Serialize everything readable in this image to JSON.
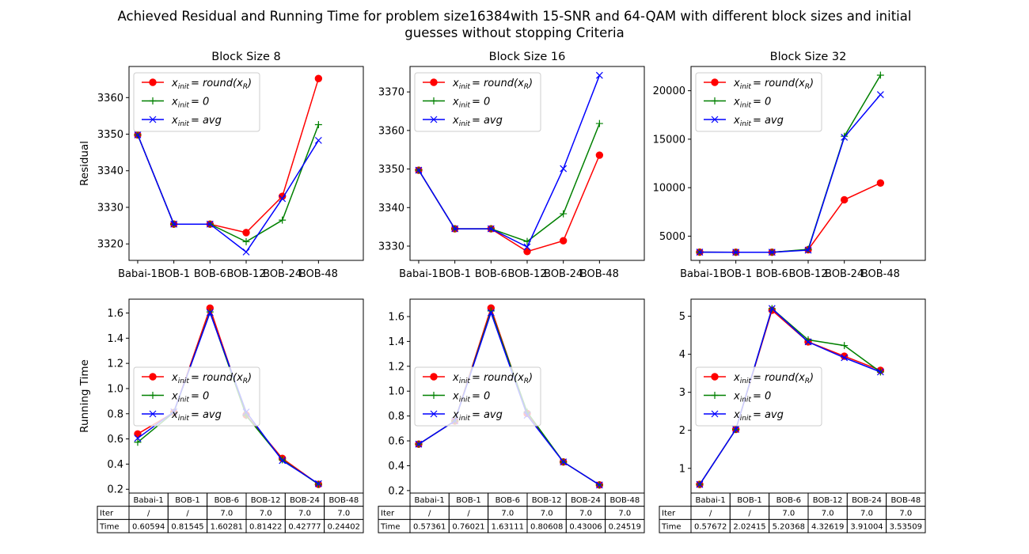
{
  "figure": {
    "title_line1": "Achieved Residual and Running Time for problem size16384with  15-SNR and 64-QAM with different block sizes and initial",
    "title_line2": "guesses without stopping Criteria"
  },
  "legend": {
    "entries": [
      {
        "main": "x",
        "sub": "init",
        "rhs": "= round(x",
        "rhs_sub": "R",
        "rhs_end": ")"
      },
      {
        "main": "x",
        "sub": "init",
        "rhs": "= 0",
        "rhs_sub": "",
        "rhs_end": ""
      },
      {
        "main": "x",
        "sub": "init",
        "rhs": "= avg",
        "rhs_sub": "",
        "rhs_end": ""
      }
    ],
    "placement": "upper-left"
  },
  "table": {
    "row_labels": [
      "Iter",
      "Time"
    ]
  },
  "colors": {
    "round": "#ff0000",
    "zero": "#008000",
    "avg": "#0000ff"
  },
  "chart_data": [
    {
      "type": "line",
      "title": "Block Size 8",
      "ylabel": "Residual",
      "categories": [
        "Babai-1",
        "BOB-1",
        "BOB-6",
        "BOB-12",
        "BOB-24",
        "BOB-48"
      ],
      "ylim": [
        3315.5,
        3368.5
      ],
      "yticks": [
        3320,
        3330,
        3340,
        3350,
        3360
      ],
      "ytick_labels": [
        "3320",
        "3330",
        "3340",
        "3350",
        "3360"
      ],
      "series": [
        {
          "key": "round",
          "color": "#ff0000",
          "marker": "circle",
          "values": [
            3349.8,
            3325.4,
            3325.4,
            3323.1,
            3333.0,
            3365.2
          ]
        },
        {
          "key": "zero",
          "color": "#008000",
          "marker": "plus",
          "values": [
            3349.8,
            3325.4,
            3325.4,
            3320.6,
            3326.5,
            3352.6
          ]
        },
        {
          "key": "avg",
          "color": "#0000ff",
          "marker": "x",
          "values": [
            3349.8,
            3325.4,
            3325.4,
            3317.8,
            3332.4,
            3348.3
          ]
        }
      ]
    },
    {
      "type": "line",
      "title": "Block Size 16",
      "ylabel": "",
      "categories": [
        "Babai-1",
        "BOB-1",
        "BOB-6",
        "BOB-12",
        "BOB-24",
        "BOB-48"
      ],
      "ylim": [
        3326.3,
        3376.6
      ],
      "yticks": [
        3330,
        3340,
        3350,
        3360,
        3370
      ],
      "ytick_labels": [
        "3330",
        "3340",
        "3350",
        "3360",
        "3370"
      ],
      "series": [
        {
          "key": "round",
          "color": "#ff0000",
          "marker": "circle",
          "values": [
            3349.7,
            3334.5,
            3334.5,
            3328.6,
            3331.4,
            3353.6
          ]
        },
        {
          "key": "zero",
          "color": "#008000",
          "marker": "plus",
          "values": [
            3349.7,
            3334.5,
            3334.5,
            3331.2,
            3338.4,
            3361.8
          ]
        },
        {
          "key": "avg",
          "color": "#0000ff",
          "marker": "x",
          "values": [
            3349.7,
            3334.5,
            3334.5,
            3329.8,
            3350.1,
            3374.3
          ]
        }
      ]
    },
    {
      "type": "line",
      "title": "Block Size 32",
      "ylabel": "",
      "categories": [
        "Babai-1",
        "BOB-1",
        "BOB-6",
        "BOB-12",
        "BOB-24",
        "BOB-48"
      ],
      "ylim": [
        2500,
        22500
      ],
      "yticks": [
        5000,
        10000,
        15000,
        20000
      ],
      "ytick_labels": [
        "5000",
        "10000",
        "15000",
        "20000"
      ],
      "series": [
        {
          "key": "round",
          "color": "#ff0000",
          "marker": "circle",
          "values": [
            3350,
            3340,
            3340,
            3600,
            8750,
            10480
          ]
        },
        {
          "key": "zero",
          "color": "#008000",
          "marker": "plus",
          "values": [
            3350,
            3340,
            3340,
            3640,
            15300,
            21600
          ]
        },
        {
          "key": "avg",
          "color": "#0000ff",
          "marker": "x",
          "values": [
            3350,
            3340,
            3340,
            3560,
            15200,
            19600
          ]
        }
      ]
    },
    {
      "type": "line",
      "title": "",
      "ylabel": "Running Time",
      "categories": [
        "Babai-1",
        "BOB-1",
        "BOB-6",
        "BOB-12",
        "BOB-24",
        "BOB-48"
      ],
      "ylim": [
        0.17,
        1.71
      ],
      "yticks": [
        0.2,
        0.4,
        0.6,
        0.8,
        1.0,
        1.2,
        1.4,
        1.6
      ],
      "ytick_labels": [
        "0.2",
        "0.4",
        "0.6",
        "0.8",
        "1.0",
        "1.2",
        "1.4",
        "1.6"
      ],
      "series": [
        {
          "key": "round",
          "color": "#ff0000",
          "marker": "circle",
          "values": [
            0.6395,
            0.81,
            1.6385,
            0.79,
            0.4453,
            0.2395
          ]
        },
        {
          "key": "zero",
          "color": "#008000",
          "marker": "plus",
          "values": [
            0.5738,
            0.81,
            1.6085,
            0.7854,
            0.434,
            0.2395
          ]
        },
        {
          "key": "avg",
          "color": "#0000ff",
          "marker": "x",
          "values": [
            0.6059,
            0.8154,
            1.6028,
            0.8142,
            0.4278,
            0.244
          ]
        }
      ],
      "table": {
        "iter": [
          "/",
          "/",
          "7.0",
          "7.0",
          "7.0",
          "7.0"
        ],
        "time": [
          "0.60594",
          "0.81545",
          "1.60281",
          "0.81422",
          "0.42777",
          "0.24402"
        ]
      }
    },
    {
      "type": "line",
      "title": "",
      "ylabel": "",
      "categories": [
        "Babai-1",
        "BOB-1",
        "BOB-6",
        "BOB-12",
        "BOB-24",
        "BOB-48"
      ],
      "ylim": [
        0.18,
        1.74
      ],
      "yticks": [
        0.2,
        0.4,
        0.6,
        0.8,
        1.0,
        1.2,
        1.4,
        1.6
      ],
      "ytick_labels": [
        "0.2",
        "0.4",
        "0.6",
        "0.8",
        "1.0",
        "1.2",
        "1.4",
        "1.6"
      ],
      "series": [
        {
          "key": "round",
          "color": "#ff0000",
          "marker": "circle",
          "values": [
            0.5736,
            0.76,
            1.6683,
            0.82,
            0.4301,
            0.2452
          ]
        },
        {
          "key": "zero",
          "color": "#008000",
          "marker": "plus",
          "values": [
            0.5736,
            0.76,
            1.6453,
            0.8312,
            0.4301,
            0.2452
          ]
        },
        {
          "key": "avg",
          "color": "#0000ff",
          "marker": "x",
          "values": [
            0.5736,
            0.7602,
            1.6311,
            0.8061,
            0.4301,
            0.2452
          ]
        }
      ],
      "table": {
        "iter": [
          "/",
          "/",
          "7.0",
          "7.0",
          "7.0",
          "7.0"
        ],
        "time": [
          "0.57361",
          "0.76021",
          "1.63111",
          "0.80608",
          "0.43006",
          "0.24519"
        ]
      }
    },
    {
      "type": "line",
      "title": "",
      "ylabel": "",
      "categories": [
        "Babai-1",
        "BOB-1",
        "BOB-6",
        "BOB-12",
        "BOB-24",
        "BOB-48"
      ],
      "ylim": [
        0.35,
        5.45
      ],
      "yticks": [
        1,
        2,
        3,
        4,
        5
      ],
      "ytick_labels": [
        "1",
        "2",
        "3",
        "4",
        "5"
      ],
      "series": [
        {
          "key": "round",
          "color": "#ff0000",
          "marker": "circle",
          "values": [
            0.5767,
            2.0242,
            5.1606,
            4.3262,
            3.9493,
            3.5778
          ]
        },
        {
          "key": "zero",
          "color": "#008000",
          "marker": "plus",
          "values": [
            0.5767,
            2.0242,
            5.2037,
            4.3808,
            4.2305,
            3.5351
          ]
        },
        {
          "key": "avg",
          "color": "#0000ff",
          "marker": "x",
          "values": [
            0.5767,
            2.0242,
            5.2037,
            4.3262,
            3.91,
            3.5351
          ]
        }
      ],
      "table": {
        "iter": [
          "/",
          "/",
          "7.0",
          "7.0",
          "7.0",
          "7.0"
        ],
        "time": [
          "0.57672",
          "2.02415",
          "5.20368",
          "4.32619",
          "3.91004",
          "3.53509"
        ]
      }
    }
  ]
}
